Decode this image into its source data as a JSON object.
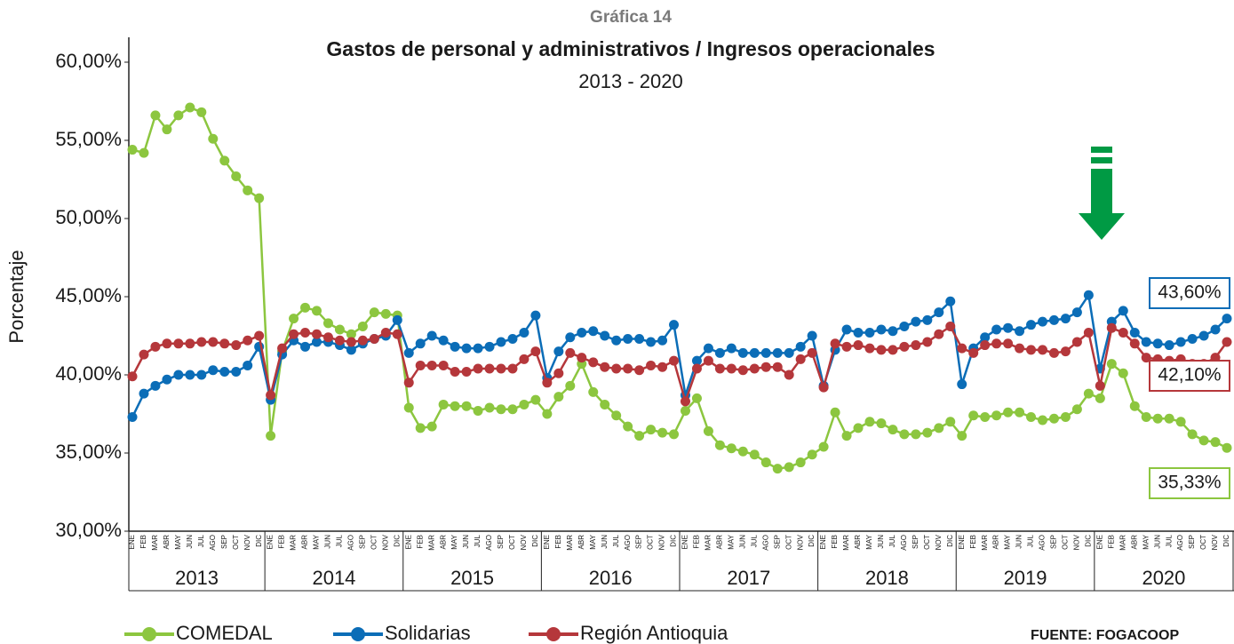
{
  "chart_data": {
    "type": "line",
    "chart_number": "Gráfica 14",
    "title": "Gastos de personal y administrativos / Ingresos operacionales",
    "subtitle": "2013 - 2020",
    "ylabel": "Porcentaje",
    "source": "FUENTE: FOGACOOP",
    "categories": [
      "ENE",
      "FEB",
      "MAR",
      "ABR",
      "MAY",
      "JUN",
      "JUL",
      "AGO",
      "SEP",
      "OCT",
      "NOV",
      "DIC",
      "ENE",
      "FEB",
      "MAR",
      "ABR",
      "MAY",
      "JUN",
      "JUL",
      "AGO",
      "SEP",
      "OCT",
      "NOV",
      "DIC",
      "ENE",
      "FEB",
      "MAR",
      "ABR",
      "MAY",
      "JUN",
      "JUL",
      "AGO",
      "SEP",
      "OCT",
      "NOV",
      "DIC",
      "ENE",
      "FEB",
      "MAR",
      "ABR",
      "MAY",
      "JUN",
      "JUL",
      "AGO",
      "SEP",
      "OCT",
      "NOV",
      "DIC",
      "ENE",
      "FEB",
      "MAR",
      "ABR",
      "MAY",
      "JUN",
      "JUL",
      "AGO",
      "SEP",
      "OCT",
      "NOV",
      "DIC",
      "ENE",
      "FEB",
      "MAR",
      "ABR",
      "MAY",
      "JUN",
      "JUL",
      "AGO",
      "SEP",
      "OCT",
      "NOV",
      "DIC",
      "ENE",
      "FEB",
      "MAR",
      "ABR",
      "MAY",
      "JUN",
      "JUL",
      "AGO",
      "SEP",
      "OCT",
      "NOV",
      "DIC",
      "ENE",
      "FEB",
      "MAR",
      "ABR",
      "MAY",
      "JUN",
      "JUL",
      "AGO",
      "SEP",
      "OCT",
      "NOV",
      "DIC"
    ],
    "years": [
      "2013",
      "2014",
      "2015",
      "2016",
      "2017",
      "2018",
      "2019",
      "2020"
    ],
    "ylim": [
      30,
      60
    ],
    "yticks": [
      {
        "value": 30,
        "label": "30,00%"
      },
      {
        "value": 35,
        "label": "35,00%"
      },
      {
        "value": 40,
        "label": "40,00%"
      },
      {
        "value": 45,
        "label": "45,00%"
      },
      {
        "value": 50,
        "label": "50,00%"
      },
      {
        "value": 55,
        "label": "55,00%"
      },
      {
        "value": 60,
        "label": "60,00%"
      }
    ],
    "series": [
      {
        "name": "COMEDAL",
        "color": "#8cc63f",
        "last_label": "35,33%",
        "values": [
          54.4,
          54.2,
          56.6,
          55.7,
          56.6,
          57.1,
          56.8,
          55.1,
          53.7,
          52.7,
          51.8,
          51.3,
          36.1,
          41.5,
          43.6,
          44.3,
          44.1,
          43.3,
          42.9,
          42.6,
          43.1,
          44.0,
          43.9,
          43.8,
          37.9,
          36.6,
          36.7,
          38.1,
          38.0,
          38.0,
          37.7,
          37.9,
          37.8,
          37.8,
          38.1,
          38.4,
          37.5,
          38.6,
          39.3,
          40.7,
          38.9,
          38.1,
          37.4,
          36.7,
          36.1,
          36.5,
          36.3,
          36.2,
          37.7,
          38.5,
          36.4,
          35.5,
          35.3,
          35.1,
          34.9,
          34.4,
          34.0,
          34.1,
          34.4,
          34.9,
          35.4,
          37.6,
          36.1,
          36.6,
          37.0,
          36.9,
          36.5,
          36.2,
          36.2,
          36.3,
          36.6,
          37.0,
          36.1,
          37.4,
          37.3,
          37.4,
          37.6,
          37.6,
          37.3,
          37.1,
          37.2,
          37.3,
          37.8,
          38.8,
          38.5,
          40.7,
          40.1,
          38.0,
          37.3,
          37.2,
          37.2,
          37.0,
          36.2,
          35.8,
          35.7,
          35.33
        ]
      },
      {
        "name": "Solidarias",
        "color": "#0b6db7",
        "last_label": "43,60%",
        "values": [
          37.3,
          38.8,
          39.3,
          39.7,
          40.0,
          40.0,
          40.0,
          40.3,
          40.2,
          40.2,
          40.6,
          41.8,
          38.4,
          41.3,
          42.2,
          41.8,
          42.1,
          42.1,
          41.9,
          41.6,
          42.0,
          42.3,
          42.5,
          43.5,
          41.4,
          42.0,
          42.5,
          42.2,
          41.8,
          41.7,
          41.7,
          41.8,
          42.1,
          42.3,
          42.7,
          43.8,
          39.8,
          41.5,
          42.4,
          42.7,
          42.8,
          42.5,
          42.2,
          42.3,
          42.3,
          42.1,
          42.2,
          43.2,
          38.7,
          40.9,
          41.7,
          41.4,
          41.7,
          41.4,
          41.4,
          41.4,
          41.4,
          41.4,
          41.8,
          42.5,
          39.3,
          41.6,
          42.9,
          42.7,
          42.7,
          42.9,
          42.8,
          43.1,
          43.4,
          43.5,
          44.0,
          44.7,
          39.4,
          41.7,
          42.4,
          42.9,
          43.0,
          42.8,
          43.2,
          43.4,
          43.5,
          43.6,
          44.0,
          45.1,
          40.4,
          43.4,
          44.1,
          42.7,
          42.1,
          42.0,
          41.9,
          42.1,
          42.3,
          42.5,
          42.9,
          43.6
        ]
      },
      {
        "name": "Región Antioquia",
        "color": "#b5373b",
        "last_label": "42,10%",
        "values": [
          39.9,
          41.3,
          41.8,
          42.0,
          42.0,
          42.0,
          42.1,
          42.1,
          42.0,
          41.9,
          42.2,
          42.5,
          38.7,
          41.7,
          42.6,
          42.7,
          42.6,
          42.4,
          42.2,
          42.1,
          42.2,
          42.3,
          42.7,
          42.6,
          39.5,
          40.6,
          40.6,
          40.6,
          40.2,
          40.2,
          40.4,
          40.4,
          40.4,
          40.4,
          41.0,
          41.5,
          39.5,
          40.1,
          41.4,
          41.1,
          40.8,
          40.5,
          40.4,
          40.4,
          40.3,
          40.6,
          40.5,
          40.9,
          38.3,
          40.4,
          40.9,
          40.4,
          40.4,
          40.3,
          40.4,
          40.5,
          40.5,
          40.0,
          41.0,
          41.4,
          39.2,
          42.0,
          41.8,
          41.9,
          41.7,
          41.6,
          41.6,
          41.8,
          41.9,
          42.1,
          42.6,
          43.1,
          41.7,
          41.4,
          41.9,
          42.0,
          42.0,
          41.7,
          41.6,
          41.6,
          41.4,
          41.5,
          42.1,
          42.7,
          39.3,
          43.0,
          42.7,
          42.0,
          41.1,
          41.0,
          40.9,
          41.0,
          40.7,
          40.7,
          41.1,
          42.1
        ]
      }
    ]
  }
}
